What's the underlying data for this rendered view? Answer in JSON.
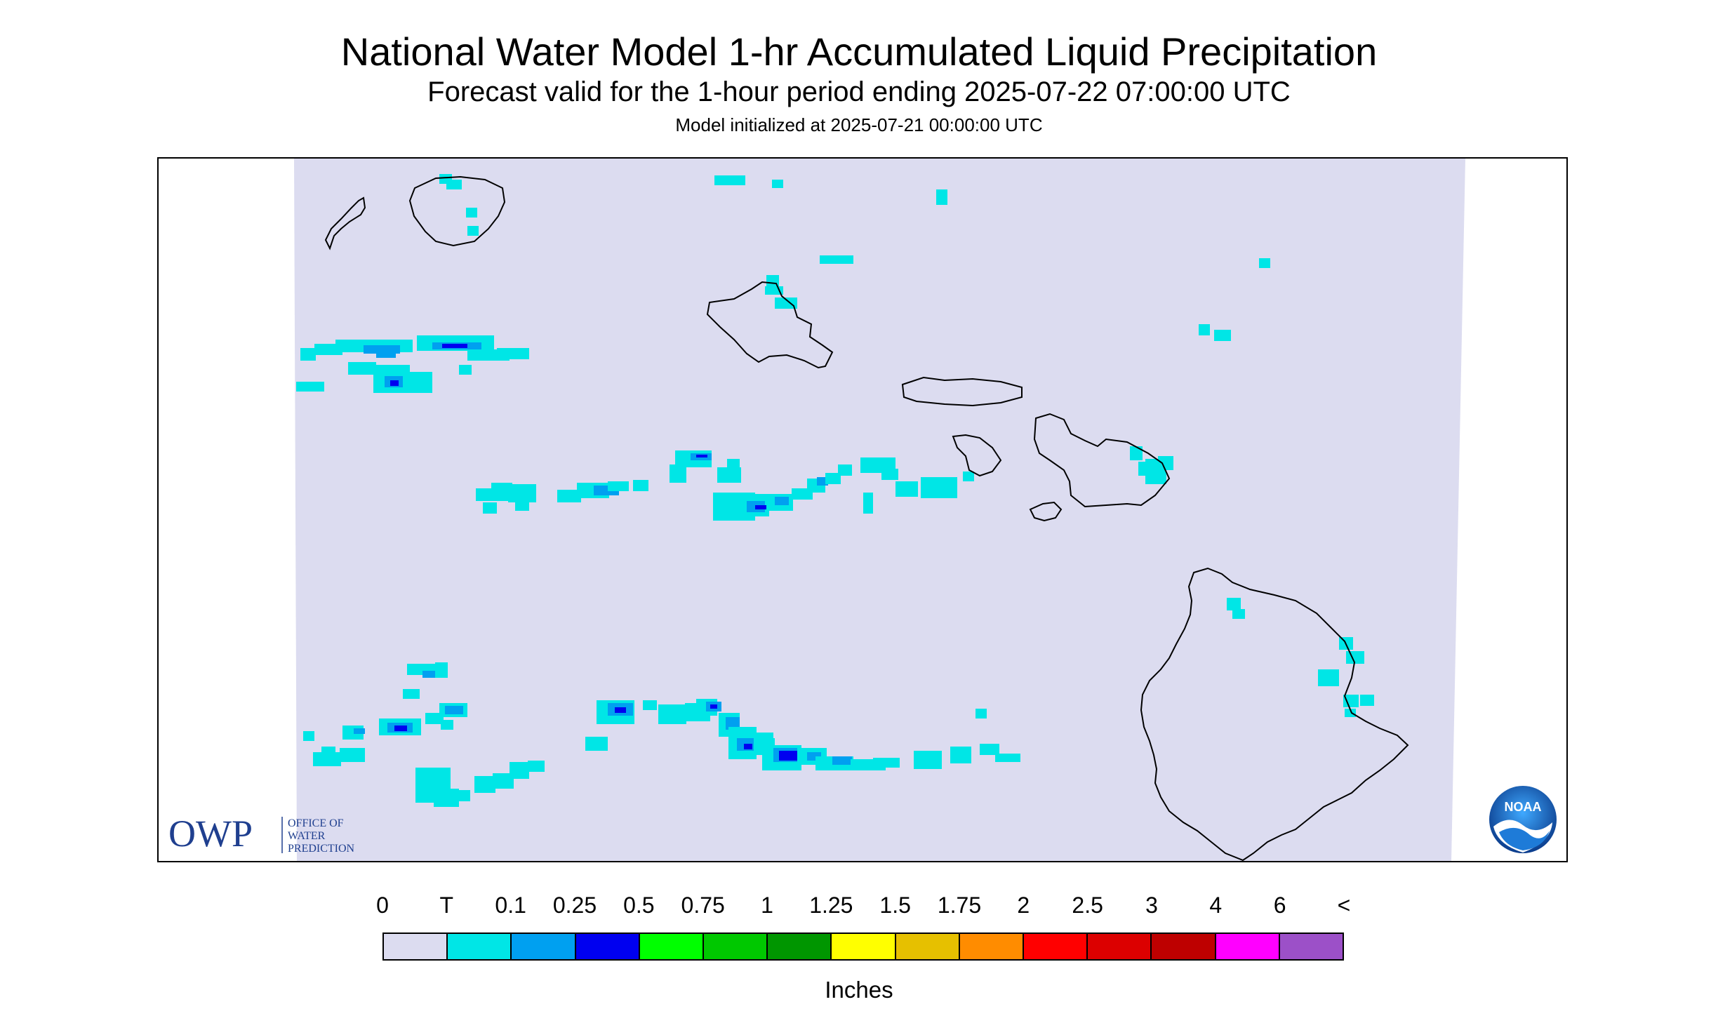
{
  "title": "National Water Model 1-hr Accumulated Liquid Precipitation",
  "subtitle": "Forecast valid for the 1-hour period ending 2025-07-22 07:00:00 UTC",
  "init_line": "Model initialized at 2025-07-21 00:00:00 UTC",
  "logos": {
    "owp_mark": "OWP",
    "owp_text": [
      "OFFICE OF",
      "WATER",
      "PREDICTION"
    ],
    "noaa_text": "NOAA"
  },
  "legend": {
    "units": "Inches",
    "tick_labels": [
      "0",
      "T",
      "0.1",
      "0.25",
      "0.5",
      "0.75",
      "1",
      "1.25",
      "1.5",
      "1.75",
      "2",
      "2.5",
      "3",
      "4",
      "6",
      "<"
    ],
    "colors": [
      "#dcdcf0",
      "#00e6e6",
      "#00a0f0",
      "#0000f0",
      "#00ff00",
      "#00c800",
      "#009600",
      "#ffff00",
      "#e6c000",
      "#ff8c00",
      "#ff0000",
      "#dc0000",
      "#be0000",
      "#ff00ff",
      "#9c50c8"
    ]
  },
  "map": {
    "domain_fill": "#dcdcf0",
    "islands": [
      "Kauai",
      "Niihau",
      "Oahu",
      "Molokai",
      "Lanai",
      "Maui",
      "Kahoolawe",
      "Hawaii"
    ]
  }
}
